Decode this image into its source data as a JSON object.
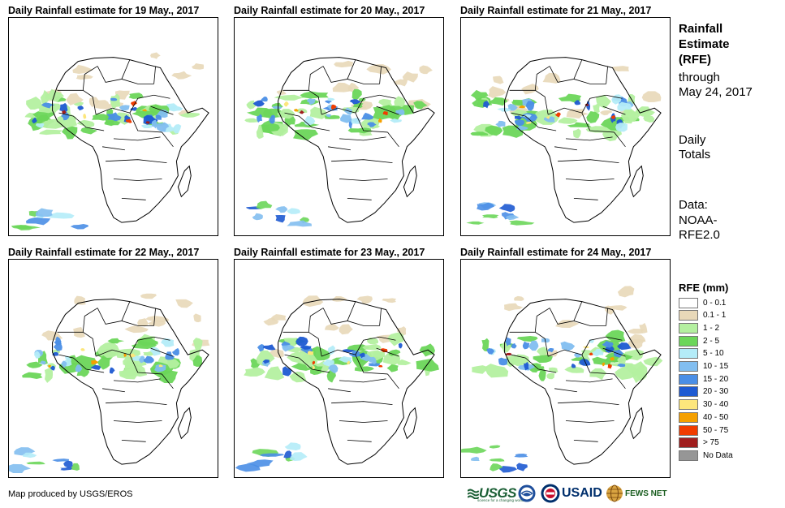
{
  "panels": [
    {
      "title": "Daily Rainfall estimate for 19 May., 2017"
    },
    {
      "title": "Daily Rainfall estimate for 20 May., 2017"
    },
    {
      "title": "Daily Rainfall estimate for 21 May., 2017"
    },
    {
      "title": "Daily Rainfall estimate for 22 May., 2017"
    },
    {
      "title": "Daily Rainfall estimate for 23 May., 2017"
    },
    {
      "title": "Daily Rainfall estimate for 24 May., 2017"
    }
  ],
  "sidebar": {
    "title_lines": [
      "Rainfall",
      "Estimate",
      "(RFE)"
    ],
    "through_lines": [
      "through",
      "May 24, 2017"
    ],
    "totals_lines": [
      "Daily",
      "Totals"
    ],
    "data_lines": [
      "Data:",
      "NOAA-",
      "RFE2.0"
    ]
  },
  "legend": {
    "title": "RFE (mm)",
    "items": [
      {
        "label": "0 - 0.1",
        "color": "#ffffff"
      },
      {
        "label": "0.1 - 1",
        "color": "#e8d8b8"
      },
      {
        "label": "1 - 2",
        "color": "#b4f0a0"
      },
      {
        "label": "2 - 5",
        "color": "#6cd65a"
      },
      {
        "label": "5 - 10",
        "color": "#b4ecf8"
      },
      {
        "label": "10 - 15",
        "color": "#82bef0"
      },
      {
        "label": "15 - 20",
        "color": "#4a8ee6"
      },
      {
        "label": "20 - 30",
        "color": "#1e5ad2"
      },
      {
        "label": "30 - 40",
        "color": "#fce67c"
      },
      {
        "label": "40 - 50",
        "color": "#f5a000"
      },
      {
        "label": "50 - 75",
        "color": "#f03c00"
      },
      {
        "label": "> 75",
        "color": "#a01e1e"
      },
      {
        "label": "No Data",
        "color": "#969696"
      }
    ]
  },
  "footer": {
    "credit": "Map produced by USGS/EROS",
    "usgs": "USGS",
    "usgs_tagline": "science for a changing world",
    "usaid": "USAID",
    "fews": "FEWS NET"
  }
}
